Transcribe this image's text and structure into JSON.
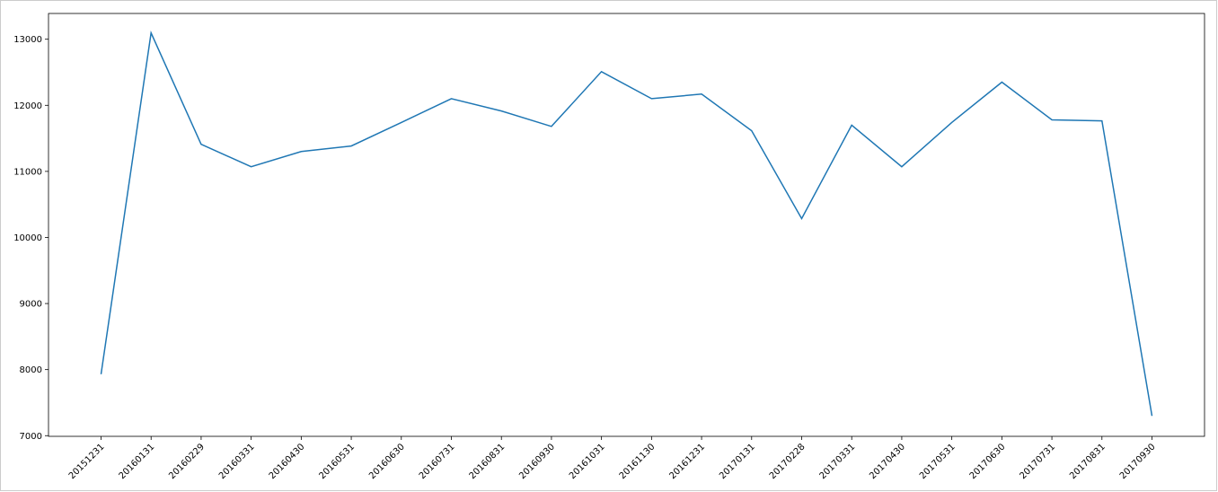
{
  "chart_data": {
    "type": "line",
    "categories": [
      "20151231",
      "20160131",
      "20160229",
      "20160331",
      "20160430",
      "20160531",
      "20160630",
      "20160731",
      "20160831",
      "20160930",
      "20161031",
      "20161130",
      "20161231",
      "20170131",
      "20170228",
      "20170331",
      "20170430",
      "20170531",
      "20170630",
      "20170731",
      "20170831",
      "20170930"
    ],
    "series": [
      {
        "color": "#1f77b4",
        "values": [
          7930,
          13095,
          11410,
          11070,
          11300,
          11385,
          11740,
          12100,
          11915,
          11680,
          12510,
          12100,
          12170,
          11615,
          10285,
          11700,
          11070,
          11740,
          12350,
          11780,
          11765,
          7300
        ]
      }
    ],
    "ylim": [
      6990,
      13390
    ],
    "yticks": [
      7000,
      8000,
      9000,
      10000,
      11000,
      12000,
      13000
    ],
    "grid": false
  }
}
